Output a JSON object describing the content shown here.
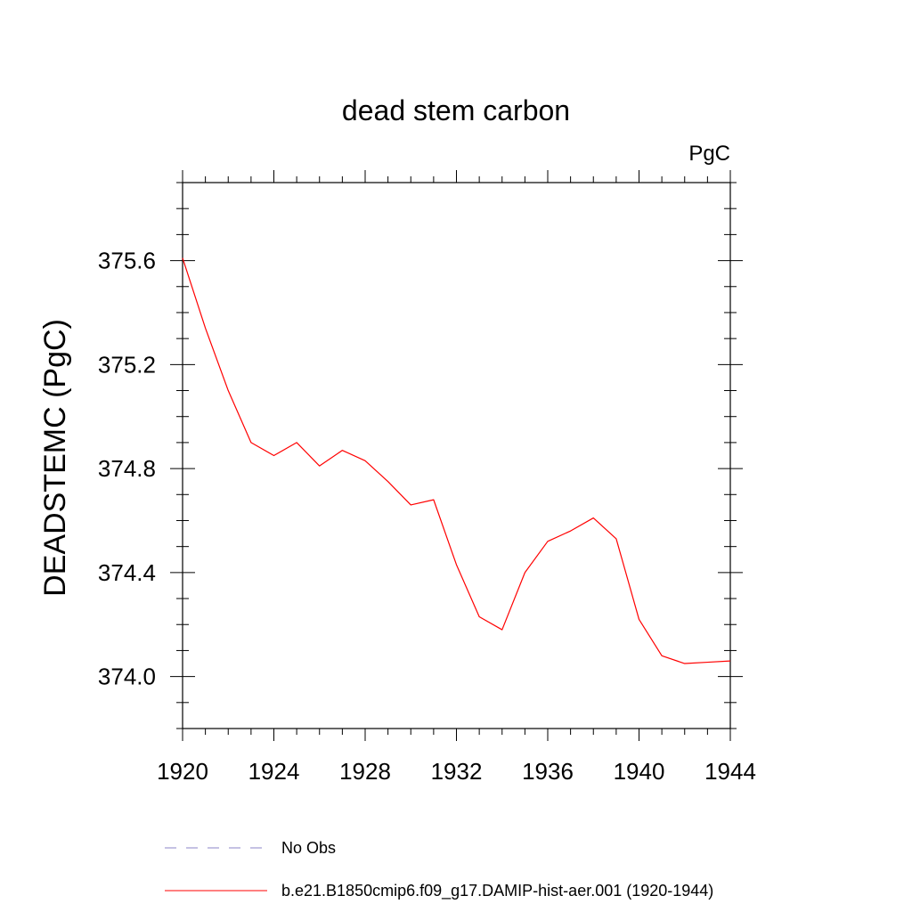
{
  "chart_data": {
    "type": "line",
    "title": "dead stem carbon",
    "units_label": "PgC",
    "ylabel": "DEADSTEMC  (PgC)",
    "xlabel": "",
    "xlim": [
      1920,
      1944
    ],
    "ylim": [
      373.8,
      375.9
    ],
    "x_major_ticks": [
      1920,
      1924,
      1928,
      1932,
      1936,
      1940,
      1944
    ],
    "y_major_ticks": [
      374.0,
      374.4,
      374.8,
      375.2,
      375.6
    ],
    "y_tick_labels": [
      "374.0",
      "374.4",
      "374.8",
      "375.2",
      "375.6"
    ],
    "grid": false,
    "legend_position": "bottom",
    "legend": [
      {
        "name": "No Obs",
        "color": "#8b86c7",
        "dash": "dashed"
      },
      {
        "name": "b.e21.B1850cmip6.f09_g17.DAMIP-hist-aer.001 (1920-1944)",
        "color": "#ff0000",
        "dash": "solid"
      }
    ],
    "series": [
      {
        "name": "b.e21.B1850cmip6.f09_g17.DAMIP-hist-aer.001 (1920-1944)",
        "color": "#ff0000",
        "x": [
          1920,
          1921,
          1922,
          1923,
          1924,
          1925,
          1926,
          1927,
          1928,
          1929,
          1930,
          1931,
          1932,
          1933,
          1934,
          1935,
          1936,
          1937,
          1938,
          1939,
          1940,
          1941,
          1942,
          1943,
          1944
        ],
        "values": [
          375.61,
          375.34,
          375.1,
          374.9,
          374.85,
          374.9,
          374.81,
          374.87,
          374.83,
          374.75,
          374.66,
          374.68,
          374.43,
          374.23,
          374.18,
          374.4,
          374.52,
          374.56,
          374.61,
          374.53,
          374.22,
          374.08,
          374.05,
          374.055,
          374.06
        ]
      }
    ]
  }
}
